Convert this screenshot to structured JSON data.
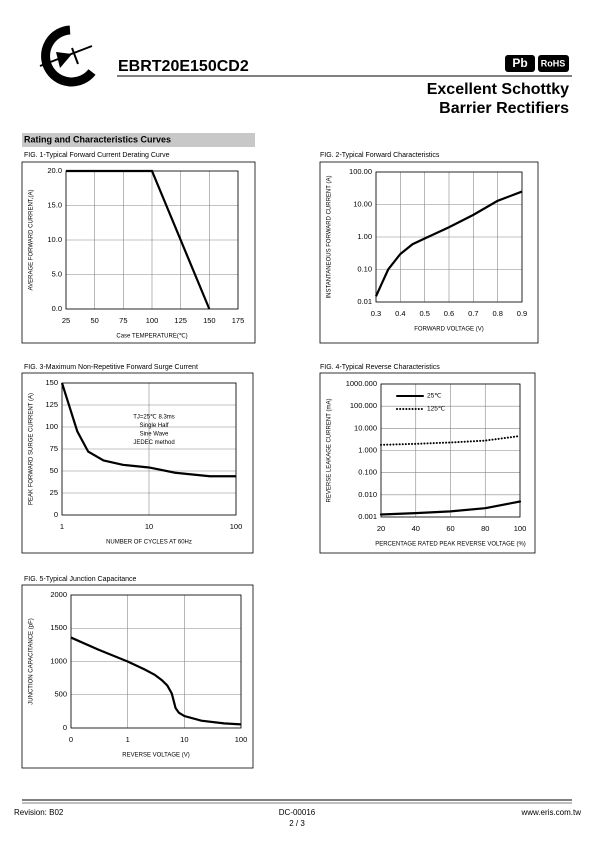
{
  "header": {
    "part_number": "EBRT20E150CD2",
    "badges": [
      "Pb",
      "RoHS"
    ],
    "title_lines": [
      "Excellent Schottky",
      "Barrier Rectifiers"
    ]
  },
  "section_title": "Rating and Characteristics Curves",
  "chart_data": [
    {
      "type": "line",
      "title": "FIG. 1-Typical Forward Current Derating Curve",
      "xlabel": "Case TEMPERATURE(℃)",
      "ylabel": "AVERAGE FORWARD CURRENT,(A)",
      "x": [
        25,
        100,
        150
      ],
      "values": [
        20,
        20,
        0
      ],
      "color": "#000000",
      "xlim": [
        25,
        175
      ],
      "xticks": [
        25,
        50,
        75,
        100,
        125,
        150,
        175
      ],
      "ylim": [
        0,
        20
      ],
      "yticks": [
        {
          "value": 0,
          "label": "0.0"
        },
        {
          "value": 5,
          "label": "5.0"
        },
        {
          "value": 10,
          "label": "10.0"
        },
        {
          "value": 15,
          "label": "15.0"
        },
        {
          "value": 20,
          "label": "20.0"
        }
      ],
      "grid": true
    },
    {
      "type": "line",
      "title": "FIG. 2-Typical Forward Characteristics",
      "xlabel": "FORWARD VOLTAGE (V)",
      "ylabel": "INSTANTANEOUS FORWARD CURRENT (A)",
      "x": [
        0.3,
        0.35,
        0.4,
        0.45,
        0.5,
        0.6,
        0.7,
        0.8,
        0.9
      ],
      "values": [
        0.015,
        0.1,
        0.3,
        0.6,
        0.9,
        2,
        4.8,
        13,
        25
      ],
      "color": "#000000",
      "xlim": [
        0.3,
        0.9
      ],
      "xticks": [
        0.3,
        0.4,
        0.5,
        0.6,
        0.7,
        0.8,
        0.9
      ],
      "ylim": [
        0.01,
        100
      ],
      "log_y": true,
      "yticks": [
        {
          "value": 0.01,
          "label": "0.01"
        },
        {
          "value": 0.1,
          "label": "0.10"
        },
        {
          "value": 1,
          "label": "1.00"
        },
        {
          "value": 10,
          "label": "10.00"
        },
        {
          "value": 100,
          "label": "100.00"
        }
      ],
      "grid": true
    },
    {
      "type": "line",
      "title": "FIG. 3-Maximum Non-Repetitive Forward Surge Current",
      "xlabel": "NUMBER OF CYCLES AT 60Hz",
      "ylabel": "PEAK FORWARD SURGE CURRENT (A)",
      "x": [
        1,
        1.5,
        2,
        3,
        5,
        10,
        20,
        50,
        100
      ],
      "values": [
        150,
        95,
        72,
        62,
        57,
        54,
        48,
        44,
        44
      ],
      "color": "#000000",
      "xlim": [
        1,
        100
      ],
      "log_x": true,
      "xticks": [
        1,
        10,
        100
      ],
      "ylim": [
        0,
        150
      ],
      "yticks": [
        0,
        25,
        50,
        75,
        100,
        125,
        150
      ],
      "grid": true,
      "annotation": [
        "TJ=25℃ 8.3ms",
        "Single Half",
        "Sine Wave",
        "JEDEC method"
      ]
    },
    {
      "type": "line",
      "title": "FIG. 4-Typical Reverse Characteristics",
      "xlabel": "PERCENTAGE RATED PEAK REVERSE VOLTAGE (%)",
      "ylabel": "REVERSE LEAKAGE CURRENT (mA)",
      "x": [
        20,
        40,
        60,
        80,
        100
      ],
      "series": [
        {
          "name": "25℃",
          "color": "#000000",
          "style": "solid",
          "values": [
            0.0013,
            0.0015,
            0.0018,
            0.0025,
            0.005
          ]
        },
        {
          "name": "125℃",
          "color": "#000000",
          "style": "dotted",
          "values": [
            1.8,
            2,
            2.3,
            2.8,
            4.5
          ]
        }
      ],
      "xlim": [
        20,
        100
      ],
      "xticks": [
        20,
        40,
        60,
        80,
        100
      ],
      "ylim": [
        0.001,
        1000
      ],
      "log_y": true,
      "yticks": [
        {
          "value": 0.001,
          "label": "0.001"
        },
        {
          "value": 0.01,
          "label": "0.010"
        },
        {
          "value": 0.1,
          "label": "0.100"
        },
        {
          "value": 1,
          "label": "1.000"
        },
        {
          "value": 10,
          "label": "10.000"
        },
        {
          "value": 100,
          "label": "100.000"
        },
        {
          "value": 1000,
          "label": "1000.000"
        }
      ],
      "grid": true,
      "legend": "upper left"
    },
    {
      "type": "line",
      "title": "FIG. 5-Typical Junction Capacitance",
      "xlabel": "REVERSE VOLTAGE (V)",
      "ylabel": "JUNCTION CAPACITANCE (pF)",
      "x": [
        0.1,
        0.3,
        1,
        2,
        3,
        4,
        5,
        6,
        7,
        8,
        10,
        20,
        50,
        100
      ],
      "values": [
        1360,
        1180,
        1000,
        880,
        800,
        720,
        640,
        520,
        300,
        230,
        180,
        110,
        70,
        55
      ],
      "color": "#000000",
      "xlim": [
        0.1,
        100
      ],
      "log_x": true,
      "xticks": [
        {
          "value": 0.1,
          "label": "0"
        },
        1,
        10,
        100
      ],
      "ylim": [
        0,
        2000
      ],
      "yticks": [
        0,
        500,
        1000,
        1500,
        2000
      ],
      "grid": true
    }
  ],
  "footer": {
    "revision": "Revision: B02",
    "doc_number": "DC-00016",
    "page": "2 / 3",
    "website": "www.eris.com.tw"
  }
}
